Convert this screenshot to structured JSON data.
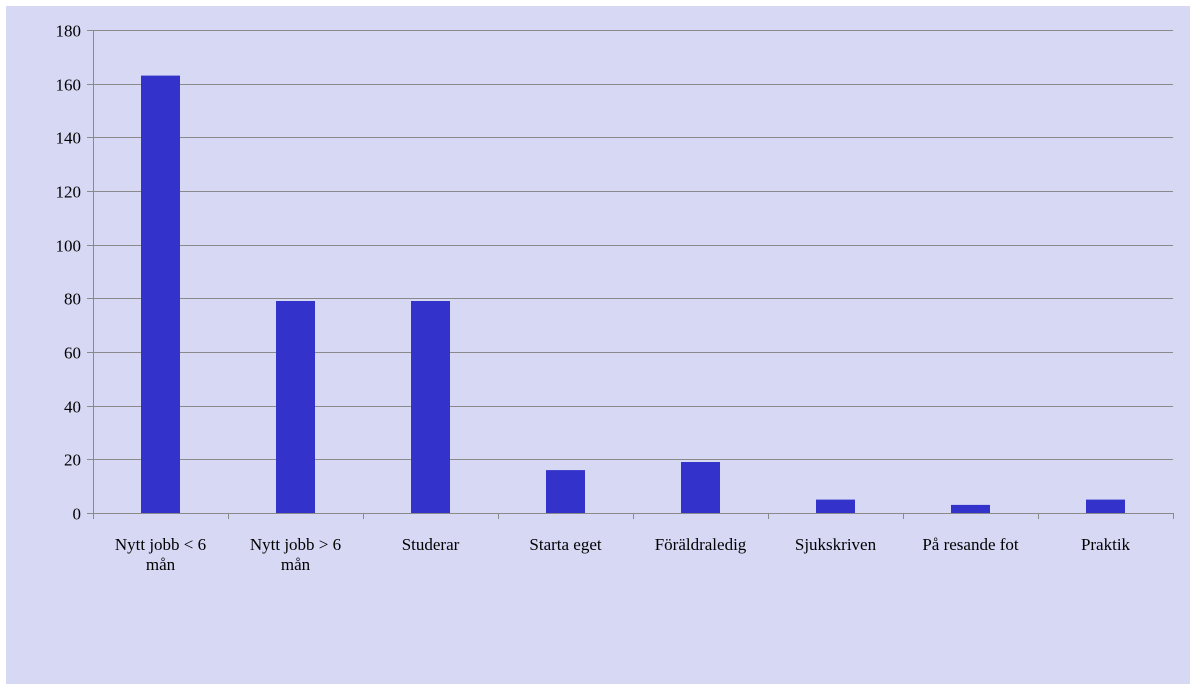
{
  "chart_data": {
    "type": "bar",
    "title": "",
    "xlabel": "",
    "ylabel": "",
    "categories": [
      "Nytt jobb < 6 mån",
      "Nytt jobb > 6 mån",
      "Studerar",
      "Starta eget",
      "Föräldraledig",
      "Sjukskriven",
      "På resande fot",
      "Praktik"
    ],
    "category_lines": [
      [
        "Nytt jobb < 6",
        "mån"
      ],
      [
        "Nytt jobb > 6",
        "mån"
      ],
      [
        "Studerar"
      ],
      [
        "Starta eget"
      ],
      [
        "Föräldraledig"
      ],
      [
        "Sjukskriven"
      ],
      [
        "På resande fot"
      ],
      [
        "Praktik"
      ]
    ],
    "values": [
      163,
      79,
      79,
      16,
      19,
      5,
      3,
      5
    ],
    "ylim": [
      0,
      180
    ],
    "yticks": [
      0,
      20,
      40,
      60,
      80,
      100,
      120,
      140,
      160,
      180
    ],
    "grid": true,
    "legend": "none"
  },
  "colors": {
    "background": "#d6d8f4",
    "bar": "#3333cc",
    "grid": "#8a8a8a"
  }
}
